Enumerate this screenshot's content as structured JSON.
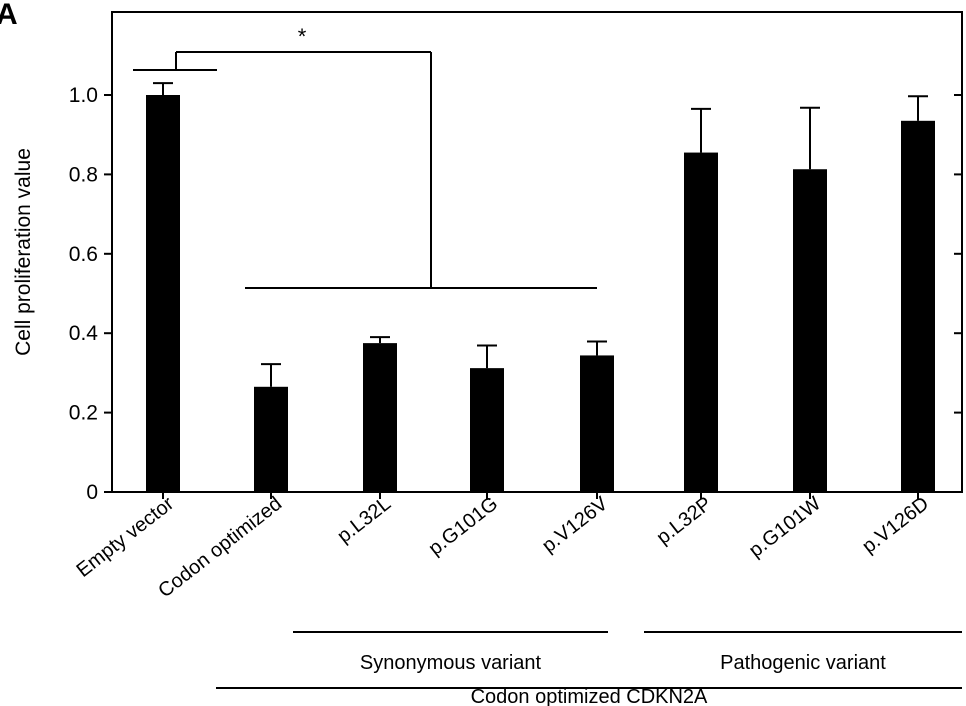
{
  "panel_label": "A",
  "chart_data": {
    "type": "bar",
    "ylabel": "Cell proliferation value",
    "xlabel": "",
    "ylim": [
      0,
      1.2
    ],
    "yticks": [
      0,
      0.2,
      0.4,
      0.6,
      0.8,
      1.0
    ],
    "ytick_labels": [
      "0",
      "0.2",
      "0.4",
      "0.6",
      "0.8",
      "1.0"
    ],
    "categories": [
      "Empty vector",
      "Codon optimized",
      "p.L32L",
      "p.G101G",
      "p.V126V",
      "p.L32P",
      "p.G101W",
      "p.V126D"
    ],
    "values": [
      1.0,
      0.265,
      0.375,
      0.312,
      0.344,
      0.855,
      0.813,
      0.935
    ],
    "errors": [
      0.03,
      0.057,
      0.015,
      0.057,
      0.035,
      0.11,
      0.155,
      0.062
    ],
    "bar_color": "#000000",
    "grid": false,
    "groups": [
      {
        "label": "Synonymous variant",
        "from": 2,
        "to": 4
      },
      {
        "label": "Pathogenic variant",
        "from": 5,
        "to": 7
      },
      {
        "label": "Codon optimized CDKN2A",
        "from": 1,
        "to": 7
      }
    ],
    "significance": {
      "label": "*",
      "left": [
        0
      ],
      "right": [
        1,
        2,
        3,
        4
      ]
    }
  }
}
